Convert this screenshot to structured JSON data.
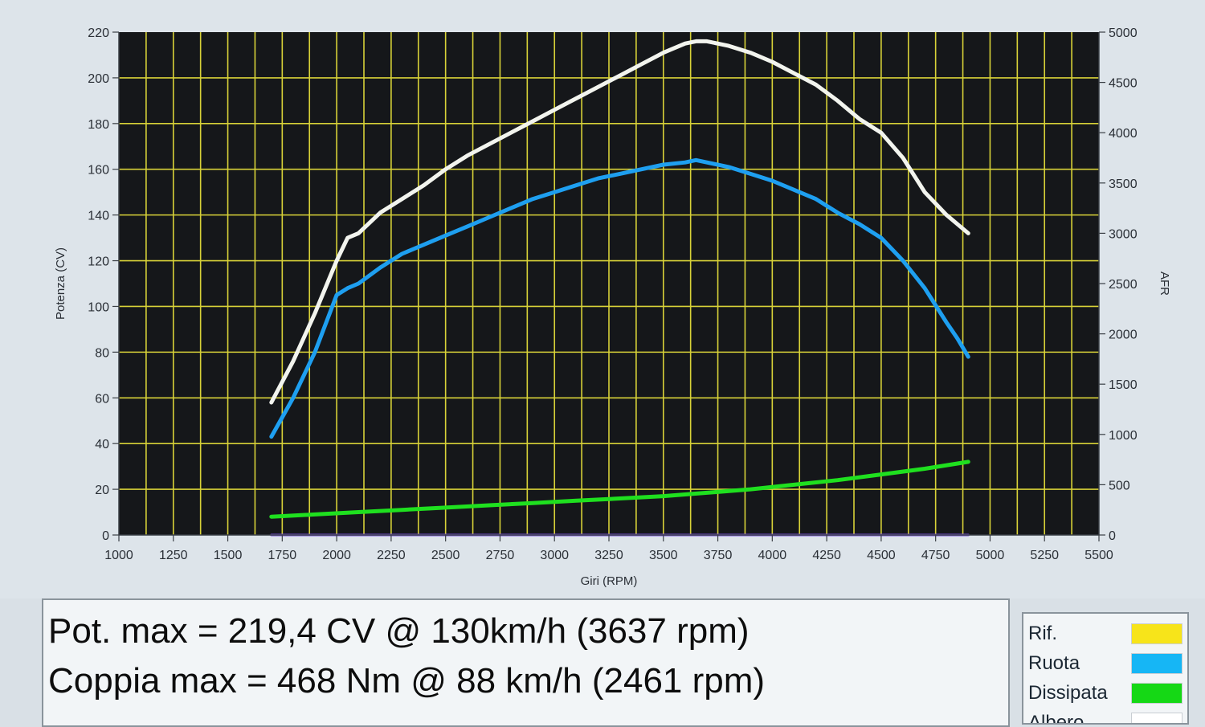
{
  "chart_data": {
    "type": "line",
    "title": "",
    "xlabel": "Giri (RPM)",
    "ylabel": "Potenza (CV)",
    "y2label": "AFR",
    "xlim": [
      1000,
      5500
    ],
    "ylim": [
      0,
      220
    ],
    "y2lim": [
      0,
      5000
    ],
    "x_ticks": [
      "1000",
      "1250",
      "1500",
      "1750",
      "2000",
      "2250",
      "2500",
      "2750",
      "3000",
      "3250",
      "3500",
      "3750",
      "4000",
      "4250",
      "4500",
      "4750",
      "5000",
      "5250",
      "5500"
    ],
    "y_ticks": [
      "0",
      "20",
      "40",
      "60",
      "80",
      "100",
      "120",
      "140",
      "160",
      "180",
      "200",
      "220"
    ],
    "y2_ticks": [
      "0",
      "500",
      "1000",
      "1500",
      "2000",
      "2500",
      "3000",
      "3500",
      "4000",
      "4500",
      "5000"
    ],
    "grid": true,
    "series": [
      {
        "name": "Albero",
        "color": "#f2f4ee",
        "x": [
          1700,
          1800,
          1900,
          2000,
          2050,
          2100,
          2200,
          2300,
          2400,
          2500,
          2600,
          2700,
          2800,
          2900,
          3000,
          3100,
          3200,
          3300,
          3400,
          3500,
          3600,
          3650,
          3700,
          3800,
          3900,
          4000,
          4100,
          4200,
          4300,
          4400,
          4500,
          4600,
          4700,
          4800,
          4850,
          4900
        ],
        "y": [
          58,
          76,
          97,
          120,
          130,
          132,
          141,
          147,
          153,
          160,
          166,
          171,
          176,
          181,
          186,
          191,
          196,
          201,
          206,
          211,
          215,
          216,
          216,
          214,
          211,
          207,
          202,
          197,
          190,
          182,
          176,
          165,
          150,
          140,
          136,
          132
        ]
      },
      {
        "name": "Ruota",
        "color": "#1e9ff0",
        "x": [
          1700,
          1800,
          1900,
          2000,
          2050,
          2100,
          2200,
          2300,
          2400,
          2500,
          2600,
          2700,
          2800,
          2900,
          3000,
          3100,
          3200,
          3300,
          3400,
          3500,
          3600,
          3650,
          3700,
          3800,
          3900,
          4000,
          4100,
          4200,
          4300,
          4400,
          4500,
          4600,
          4700,
          4800,
          4850,
          4900
        ],
        "y": [
          43,
          60,
          80,
          105,
          108,
          110,
          117,
          123,
          127,
          131,
          135,
          139,
          143,
          147,
          150,
          153,
          156,
          158,
          160,
          162,
          163,
          164,
          163,
          161,
          158,
          155,
          151,
          147,
          141,
          136,
          130,
          120,
          108,
          93,
          86,
          78
        ]
      },
      {
        "name": "Dissipata",
        "color": "#1fe01f",
        "x": [
          1700,
          1900,
          2100,
          2300,
          2500,
          2700,
          2900,
          3100,
          3300,
          3500,
          3700,
          3900,
          4100,
          4300,
          4500,
          4700,
          4900
        ],
        "y": [
          8,
          9,
          10,
          11,
          12,
          13,
          14,
          15,
          16,
          17,
          18.5,
          20,
          22,
          24,
          26.5,
          29,
          32
        ]
      },
      {
        "name": "Rif",
        "color": "#7b52e0",
        "x": [
          1700,
          4900
        ],
        "y": [
          0,
          0
        ]
      }
    ]
  },
  "info": {
    "pot_max": "Pot. max = 219,4 CV @ 130km/h (3637 rpm)",
    "coppia_max": "Coppia max = 468 Nm @ 88 km/h (2461 rpm)"
  },
  "legend": {
    "items": [
      {
        "label": "Rif.",
        "color": "#f7e41a"
      },
      {
        "label": "Ruota",
        "color": "#16b6f5"
      },
      {
        "label": "Dissipata",
        "color": "#15d815"
      },
      {
        "label": "Albero",
        "color": "#ffffff"
      }
    ]
  }
}
